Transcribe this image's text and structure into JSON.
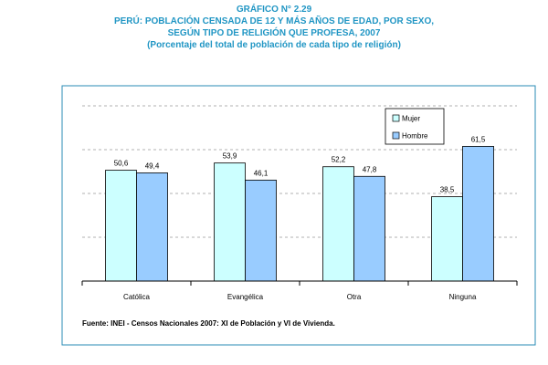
{
  "header": {
    "figure_no": "GRÁFICO N° 2.29",
    "line1": "PERÚ: POBLACIÓN CENSADA DE 12 Y MÁS AÑOS DE EDAD, POR SEXO,",
    "line2": "SEGÚN TIPO DE RELIGIÓN QUE PROFESA, 2007",
    "line3": "(Porcentaje del total de población de cada tipo de religión)"
  },
  "source": "Fuente: INEI - Censos Nacionales 2007: XI de Población y VI de Vivienda.",
  "colors": {
    "title": "#2196c4",
    "frame": "#2a8bb5",
    "mujer": "#ccffff",
    "hombre": "#99ccff",
    "grid": "#999999"
  },
  "chart_data": {
    "type": "bar",
    "title": "PERÚ: POBLACIÓN CENSADA DE 12 Y MÁS AÑOS DE EDAD, POR SEXO, SEGÚN TIPO DE RELIGIÓN QUE PROFESA, 2007",
    "categories": [
      "Católica",
      "Evangélica",
      "Otra",
      "Ninguna"
    ],
    "series": [
      {
        "name": "Mujer",
        "values": [
          50.6,
          53.9,
          52.2,
          38.5
        ],
        "labels": [
          "50,6",
          "53,9",
          "52,2",
          "38,5"
        ]
      },
      {
        "name": "Hombre",
        "values": [
          49.4,
          46.1,
          47.8,
          61.5
        ],
        "labels": [
          "49,4",
          "46,1",
          "47,8",
          "61,5"
        ]
      }
    ],
    "ylim": [
      0,
      80
    ],
    "gridlines": [
      20,
      40,
      60,
      80
    ],
    "xlabel": "",
    "ylabel": "",
    "legend_position": "top-right"
  }
}
